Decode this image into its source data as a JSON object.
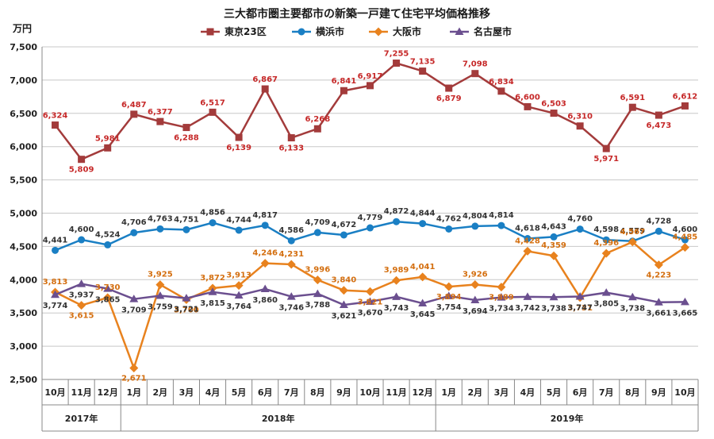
{
  "chart_data": {
    "type": "line",
    "title": "三大都市圏主要都市の新築一戸建て住宅平均価格推移",
    "ylabel": "万円",
    "ylim": [
      2500,
      7500
    ],
    "yticks": [
      "2,500",
      "3,000",
      "3,500",
      "4,000",
      "4,500",
      "5,000",
      "5,500",
      "6,000",
      "6,500",
      "7,000",
      "7,500"
    ],
    "categories": [
      "10月",
      "11月",
      "12月",
      "1月",
      "2月",
      "3月",
      "4月",
      "5月",
      "6月",
      "7月",
      "8月",
      "9月",
      "10月",
      "11月",
      "12月",
      "1月",
      "2月",
      "3月",
      "4月",
      "5月",
      "6月",
      "7月",
      "8月",
      "9月",
      "10月"
    ],
    "years": [
      {
        "label": "2017年",
        "start": 0,
        "end": 2
      },
      {
        "label": "2018年",
        "start": 3,
        "end": 14
      },
      {
        "label": "2019年",
        "start": 15,
        "end": 24
      }
    ],
    "series": [
      {
        "name": "東京23区",
        "color": "#a33b3b",
        "label_color": "#c62828",
        "marker": "square",
        "values": [
          6324,
          5809,
          5981,
          6487,
          6377,
          6288,
          6517,
          6139,
          6867,
          6133,
          6268,
          6841,
          6917,
          7255,
          7135,
          6879,
          7098,
          6834,
          6600,
          6503,
          6310,
          5971,
          6591,
          6473,
          6612
        ],
        "labels": [
          "6,324",
          "5,809",
          "5,981",
          "6,487",
          "6,377",
          "6,288",
          "6,517",
          "6,139",
          "6,867",
          "6,133",
          "6,268",
          "6,841",
          "6,917",
          "7,255",
          "7,135",
          "6,879",
          "7,098",
          "6,834",
          "6,600",
          "6,503",
          "6,310",
          "5,971",
          "6,591",
          "6,473",
          "6,612"
        ]
      },
      {
        "name": "横浜市",
        "color": "#1a7fc4",
        "label_color": "#333333",
        "marker": "circle",
        "values": [
          4441,
          4600,
          4524,
          4706,
          4763,
          4751,
          4856,
          4744,
          4817,
          4586,
          4709,
          4672,
          4779,
          4872,
          4844,
          4762,
          4804,
          4814,
          4618,
          4643,
          4760,
          4598,
          4579,
          4728,
          4600
        ],
        "labels": [
          "4,441",
          "4,600",
          "4,524",
          "4,706",
          "4,763",
          "4,751",
          "4,856",
          "4,744",
          "4,817",
          "4,586",
          "4,709",
          "4,672",
          "4,779",
          "4,872",
          "4,844",
          "4,762",
          "4,804",
          "4,814",
          "4,618",
          "4,643",
          "4,760",
          "4,598",
          "4,579",
          "4,728",
          "4,600"
        ]
      },
      {
        "name": "大阪市",
        "color": "#e8821e",
        "label_color": "#d46f10",
        "marker": "diamond",
        "values": [
          3813,
          3615,
          3730,
          2671,
          3925,
          3700,
          3872,
          3913,
          4246,
          4231,
          3996,
          3840,
          3821,
          3989,
          4041,
          3894,
          3926,
          3889,
          4428,
          4359,
          3731,
          4396,
          4567,
          4223,
          4485
        ],
        "labels": [
          "3,813",
          "3,615",
          "3,730",
          "2,671",
          "3,925",
          "3,700",
          "3,872",
          "3,913",
          "4,246",
          "4,231",
          "3,996",
          "3,840",
          "3,821",
          "3,989",
          "4,041",
          "3,894",
          "3,926",
          "3,889",
          "4,428",
          "4,359",
          "3,731",
          "4,396",
          "4,567",
          "4,223",
          "4,485"
        ]
      },
      {
        "name": "名古屋市",
        "color": "#6b4f8f",
        "label_color": "#333333",
        "marker": "triangle",
        "values": [
          3774,
          3937,
          3865,
          3709,
          3759,
          3721,
          3815,
          3764,
          3860,
          3746,
          3788,
          3621,
          3670,
          3743,
          3645,
          3754,
          3694,
          3734,
          3742,
          3738,
          3747,
          3805,
          3738,
          3661,
          3665
        ],
        "labels": [
          "3,774",
          "3,937",
          "3,865",
          "3,709",
          "3,759",
          "3,721",
          "3,815",
          "3,764",
          "3,860",
          "3,746",
          "3,788",
          "3,621",
          "3,670",
          "3,743",
          "3,645",
          "3,754",
          "3,694",
          "3,734",
          "3,742",
          "3,738",
          "3,747",
          "3,805",
          "3,738",
          "3,661",
          "3,665"
        ]
      }
    ]
  }
}
